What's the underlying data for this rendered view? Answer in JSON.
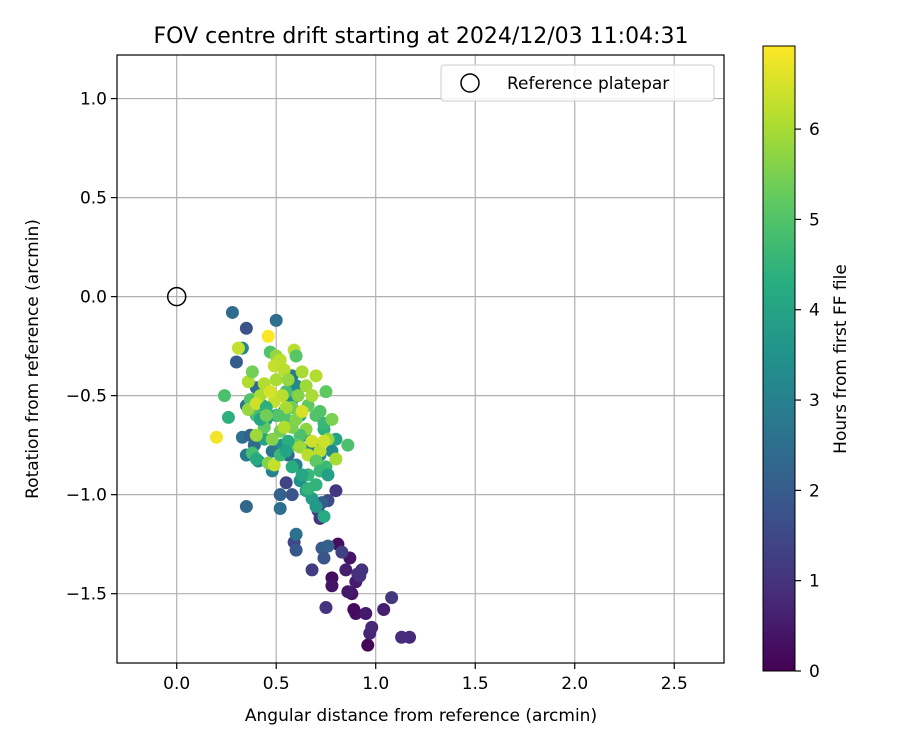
{
  "chart_data": {
    "type": "scatter",
    "title": "FOV centre drift starting at 2024/12/03 11:04:31",
    "xlabel": "Angular distance from reference (arcmin)",
    "ylabel": "Rotation from reference (arcmin)",
    "colorbar_label": "Hours from first FF file",
    "xlim": [
      -0.3,
      2.75
    ],
    "ylim": [
      -1.85,
      1.22
    ],
    "x_ticks": [
      0.0,
      0.5,
      1.0,
      1.5,
      2.0,
      2.5
    ],
    "x_tick_labels": [
      "0.0",
      "0.5",
      "1.0",
      "1.5",
      "2.0",
      "2.5"
    ],
    "y_ticks": [
      -1.5,
      -1.0,
      -0.5,
      0.0,
      0.5,
      1.0
    ],
    "y_tick_labels": [
      "−1.5",
      "−1.0",
      "−0.5",
      "0.0",
      "0.5",
      "1.0"
    ],
    "color_range": [
      0,
      6.92
    ],
    "colorbar_ticks": [
      0,
      1,
      2,
      3,
      4,
      5,
      6
    ],
    "colorbar_tick_labels": [
      "0",
      "1",
      "2",
      "3",
      "4",
      "5",
      "6"
    ],
    "colormap": "viridis",
    "grid": true,
    "legend": {
      "position": "top-right",
      "entries": [
        {
          "label": "Reference platepar",
          "marker": "open-circle"
        }
      ]
    },
    "reference_point": {
      "x": 0.0,
      "y": 0.0
    },
    "points": [
      {
        "x": 0.96,
        "y": -1.76,
        "t": 0.1
      },
      {
        "x": 0.9,
        "y": -1.6,
        "t": 0.3
      },
      {
        "x": 0.95,
        "y": -1.6,
        "t": 0.5
      },
      {
        "x": 1.04,
        "y": -1.58,
        "t": 0.6
      },
      {
        "x": 1.17,
        "y": -1.72,
        "t": 0.8
      },
      {
        "x": 1.13,
        "y": -1.72,
        "t": 0.9
      },
      {
        "x": 0.97,
        "y": -1.7,
        "t": 0.7
      },
      {
        "x": 0.98,
        "y": -1.67,
        "t": 0.75
      },
      {
        "x": 1.08,
        "y": -1.52,
        "t": 1.1
      },
      {
        "x": 0.89,
        "y": -1.58,
        "t": 0.2
      },
      {
        "x": 0.88,
        "y": -1.5,
        "t": 0.4
      },
      {
        "x": 0.86,
        "y": -1.49,
        "t": 0.5
      },
      {
        "x": 0.78,
        "y": -1.42,
        "t": 0.2
      },
      {
        "x": 0.78,
        "y": -1.46,
        "t": 0.35
      },
      {
        "x": 0.81,
        "y": -1.25,
        "t": 0.25
      },
      {
        "x": 0.87,
        "y": -1.32,
        "t": 0.4
      },
      {
        "x": 0.85,
        "y": -1.38,
        "t": 0.6
      },
      {
        "x": 0.9,
        "y": -1.44,
        "t": 0.55
      },
      {
        "x": 0.91,
        "y": -1.4,
        "t": 0.9
      },
      {
        "x": 0.93,
        "y": -1.38,
        "t": 1.0
      },
      {
        "x": 0.92,
        "y": -1.41,
        "t": 0.95
      },
      {
        "x": 0.83,
        "y": -1.29,
        "t": 1.3
      },
      {
        "x": 0.75,
        "y": -1.57,
        "t": 1.0
      },
      {
        "x": 0.68,
        "y": -1.38,
        "t": 1.2
      },
      {
        "x": 0.73,
        "y": -1.27,
        "t": 2.0
      },
      {
        "x": 0.76,
        "y": -1.26,
        "t": 2.1
      },
      {
        "x": 0.74,
        "y": -1.32,
        "t": 1.8
      },
      {
        "x": 0.59,
        "y": -1.24,
        "t": 1.5
      },
      {
        "x": 0.6,
        "y": -1.2,
        "t": 2.6
      },
      {
        "x": 0.6,
        "y": -1.28,
        "t": 1.9
      },
      {
        "x": 0.72,
        "y": -1.12,
        "t": 1.0
      },
      {
        "x": 0.71,
        "y": -1.08,
        "t": 1.2
      },
      {
        "x": 0.8,
        "y": -0.98,
        "t": 1.1
      },
      {
        "x": 0.76,
        "y": -1.03,
        "t": 1.6
      },
      {
        "x": 0.73,
        "y": -1.04,
        "t": 2.0
      },
      {
        "x": 0.55,
        "y": -0.94,
        "t": 1.4
      },
      {
        "x": 0.52,
        "y": -1.0,
        "t": 2.2
      },
      {
        "x": 0.58,
        "y": -1.0,
        "t": 1.8
      },
      {
        "x": 0.52,
        "y": -1.07,
        "t": 2.5
      },
      {
        "x": 0.35,
        "y": -1.06,
        "t": 2.3
      },
      {
        "x": 0.3,
        "y": -0.33,
        "t": 2.0
      },
      {
        "x": 0.28,
        "y": -0.08,
        "t": 2.4
      },
      {
        "x": 0.35,
        "y": -0.16,
        "t": 1.7
      },
      {
        "x": 0.5,
        "y": -0.12,
        "t": 2.5
      },
      {
        "x": 0.33,
        "y": -0.26,
        "t": 3.2
      },
      {
        "x": 0.4,
        "y": -0.46,
        "t": 2.4
      },
      {
        "x": 0.33,
        "y": -0.71,
        "t": 2.6
      },
      {
        "x": 0.37,
        "y": -0.7,
        "t": 2.2
      },
      {
        "x": 0.35,
        "y": -0.8,
        "t": 2.8
      },
      {
        "x": 0.39,
        "y": -0.75,
        "t": 2.4
      },
      {
        "x": 0.41,
        "y": -0.83,
        "t": 3.2
      },
      {
        "x": 0.48,
        "y": -0.88,
        "t": 3.0
      },
      {
        "x": 0.45,
        "y": -0.62,
        "t": 3.6
      },
      {
        "x": 0.43,
        "y": -0.55,
        "t": 3.4
      },
      {
        "x": 0.35,
        "y": -0.55,
        "t": 2.6
      },
      {
        "x": 0.5,
        "y": -0.6,
        "t": 3.8
      },
      {
        "x": 0.53,
        "y": -0.75,
        "t": 3.4
      },
      {
        "x": 0.56,
        "y": -0.8,
        "t": 2.3
      },
      {
        "x": 0.6,
        "y": -0.85,
        "t": 3.0
      },
      {
        "x": 0.62,
        "y": -0.93,
        "t": 3.5
      },
      {
        "x": 0.65,
        "y": -0.98,
        "t": 3.9
      },
      {
        "x": 0.68,
        "y": -1.02,
        "t": 3.8
      },
      {
        "x": 0.7,
        "y": -1.06,
        "t": 3.7
      },
      {
        "x": 0.74,
        "y": -1.11,
        "t": 4.2
      },
      {
        "x": 0.7,
        "y": -0.95,
        "t": 4.5
      },
      {
        "x": 0.66,
        "y": -0.9,
        "t": 4.6
      },
      {
        "x": 0.48,
        "y": -0.78,
        "t": 2.7
      },
      {
        "x": 0.44,
        "y": -0.72,
        "t": 4.0
      },
      {
        "x": 0.54,
        "y": -0.58,
        "t": 3.6
      },
      {
        "x": 0.58,
        "y": -0.52,
        "t": 3.4
      },
      {
        "x": 0.6,
        "y": -0.45,
        "t": 3.2
      },
      {
        "x": 0.58,
        "y": -0.4,
        "t": 2.8
      },
      {
        "x": 0.55,
        "y": -0.48,
        "t": 4.8
      },
      {
        "x": 0.62,
        "y": -0.6,
        "t": 4.2
      },
      {
        "x": 0.64,
        "y": -0.7,
        "t": 3.6
      },
      {
        "x": 0.68,
        "y": -0.75,
        "t": 3.0
      },
      {
        "x": 0.72,
        "y": -0.8,
        "t": 3.4
      },
      {
        "x": 0.75,
        "y": -0.86,
        "t": 4.7
      },
      {
        "x": 0.78,
        "y": -0.78,
        "t": 3.3
      },
      {
        "x": 0.8,
        "y": -0.72,
        "t": 4.0
      },
      {
        "x": 0.74,
        "y": -0.67,
        "t": 4.4
      },
      {
        "x": 0.7,
        "y": -0.6,
        "t": 5.0
      },
      {
        "x": 0.66,
        "y": -0.55,
        "t": 5.2
      },
      {
        "x": 0.61,
        "y": -0.5,
        "t": 5.6
      },
      {
        "x": 0.58,
        "y": -0.56,
        "t": 5.4
      },
      {
        "x": 0.55,
        "y": -0.62,
        "t": 5.0
      },
      {
        "x": 0.52,
        "y": -0.68,
        "t": 5.4
      },
      {
        "x": 0.48,
        "y": -0.72,
        "t": 5.6
      },
      {
        "x": 0.44,
        "y": -0.66,
        "t": 5.2
      },
      {
        "x": 0.4,
        "y": -0.6,
        "t": 4.8
      },
      {
        "x": 0.37,
        "y": -0.52,
        "t": 5.0
      },
      {
        "x": 0.36,
        "y": -0.43,
        "t": 6.1
      },
      {
        "x": 0.38,
        "y": -0.38,
        "t": 5.4
      },
      {
        "x": 0.42,
        "y": -0.5,
        "t": 6.0
      },
      {
        "x": 0.47,
        "y": -0.28,
        "t": 5.0
      },
      {
        "x": 0.5,
        "y": -0.3,
        "t": 5.8
      },
      {
        "x": 0.52,
        "y": -0.32,
        "t": 6.2
      },
      {
        "x": 0.49,
        "y": -0.35,
        "t": 6.3
      },
      {
        "x": 0.46,
        "y": -0.2,
        "t": 6.9
      },
      {
        "x": 0.31,
        "y": -0.26,
        "t": 6.3
      },
      {
        "x": 0.24,
        "y": -0.5,
        "t": 4.9
      },
      {
        "x": 0.26,
        "y": -0.61,
        "t": 4.4
      },
      {
        "x": 0.2,
        "y": -0.71,
        "t": 6.8
      },
      {
        "x": 0.36,
        "y": -0.57,
        "t": 5.8
      },
      {
        "x": 0.4,
        "y": -0.54,
        "t": 6.4
      },
      {
        "x": 0.44,
        "y": -0.44,
        "t": 6.1
      },
      {
        "x": 0.5,
        "y": -0.42,
        "t": 6.0
      },
      {
        "x": 0.54,
        "y": -0.37,
        "t": 6.2
      },
      {
        "x": 0.56,
        "y": -0.42,
        "t": 5.8
      },
      {
        "x": 0.59,
        "y": -0.27,
        "t": 6.2
      },
      {
        "x": 0.6,
        "y": -0.3,
        "t": 5.1
      },
      {
        "x": 0.63,
        "y": -0.38,
        "t": 6.0
      },
      {
        "x": 0.65,
        "y": -0.45,
        "t": 5.9
      },
      {
        "x": 0.7,
        "y": -0.4,
        "t": 6.1
      },
      {
        "x": 0.68,
        "y": -0.5,
        "t": 6.0
      },
      {
        "x": 0.75,
        "y": -0.48,
        "t": 5.2
      },
      {
        "x": 0.72,
        "y": -0.58,
        "t": 5.0
      },
      {
        "x": 0.74,
        "y": -0.64,
        "t": 4.6
      },
      {
        "x": 0.78,
        "y": -0.62,
        "t": 5.5
      },
      {
        "x": 0.76,
        "y": -0.72,
        "t": 5.8
      },
      {
        "x": 0.72,
        "y": -0.78,
        "t": 6.2
      },
      {
        "x": 0.68,
        "y": -0.73,
        "t": 6.4
      },
      {
        "x": 0.65,
        "y": -0.67,
        "t": 5.7
      },
      {
        "x": 0.62,
        "y": -0.7,
        "t": 4.9
      },
      {
        "x": 0.6,
        "y": -0.75,
        "t": 5.3
      },
      {
        "x": 0.58,
        "y": -0.66,
        "t": 5.5
      },
      {
        "x": 0.55,
        "y": -0.56,
        "t": 6.0
      },
      {
        "x": 0.53,
        "y": -0.5,
        "t": 6.2
      },
      {
        "x": 0.51,
        "y": -0.6,
        "t": 5.0
      },
      {
        "x": 0.49,
        "y": -0.53,
        "t": 6.3
      },
      {
        "x": 0.47,
        "y": -0.48,
        "t": 6.5
      },
      {
        "x": 0.45,
        "y": -0.56,
        "t": 4.4
      },
      {
        "x": 0.42,
        "y": -0.62,
        "t": 4.1
      },
      {
        "x": 0.38,
        "y": -0.79,
        "t": 4.8
      },
      {
        "x": 0.4,
        "y": -0.82,
        "t": 4.2
      },
      {
        "x": 0.46,
        "y": -0.84,
        "t": 5.6
      },
      {
        "x": 0.49,
        "y": -0.85,
        "t": 6.3
      },
      {
        "x": 0.52,
        "y": -0.8,
        "t": 4.6
      },
      {
        "x": 0.56,
        "y": -0.73,
        "t": 4.3
      },
      {
        "x": 0.62,
        "y": -0.76,
        "t": 5.9
      },
      {
        "x": 0.66,
        "y": -0.8,
        "t": 6.2
      },
      {
        "x": 0.7,
        "y": -0.83,
        "t": 5.2
      },
      {
        "x": 0.72,
        "y": -0.88,
        "t": 4.6
      },
      {
        "x": 0.76,
        "y": -0.9,
        "t": 3.9
      },
      {
        "x": 0.66,
        "y": -0.97,
        "t": 4.5
      },
      {
        "x": 0.63,
        "y": -0.9,
        "t": 4.1
      },
      {
        "x": 0.58,
        "y": -0.86,
        "t": 4.3
      },
      {
        "x": 0.55,
        "y": -0.78,
        "t": 4.0
      },
      {
        "x": 0.86,
        "y": -0.75,
        "t": 4.9
      },
      {
        "x": 0.8,
        "y": -0.82,
        "t": 6.0
      },
      {
        "x": 0.74,
        "y": -0.73,
        "t": 6.4
      },
      {
        "x": 0.45,
        "y": -0.6,
        "t": 5.4
      },
      {
        "x": 0.4,
        "y": -0.7,
        "t": 5.9
      },
      {
        "x": 0.54,
        "y": -0.66,
        "t": 6.1
      },
      {
        "x": 0.6,
        "y": -0.62,
        "t": 5.6
      },
      {
        "x": 0.63,
        "y": -0.58,
        "t": 6.5
      }
    ]
  }
}
